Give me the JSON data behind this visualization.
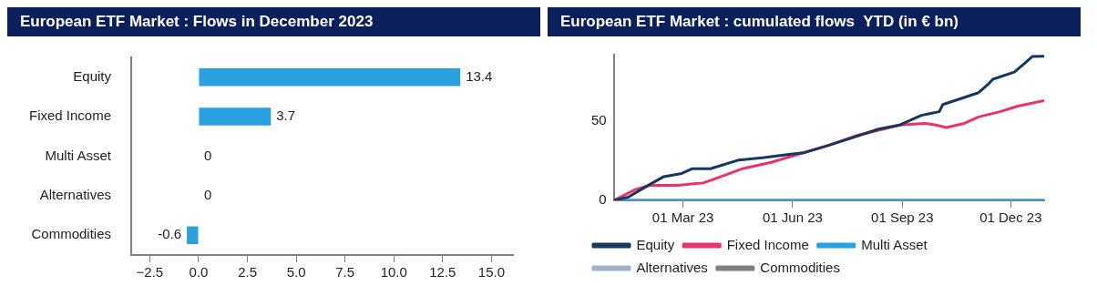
{
  "chart_data": [
    {
      "type": "bar",
      "title": "European ETF Market : Flows in December 2023",
      "orientation": "horizontal",
      "categories": [
        "Equity",
        "Fixed Income",
        "Multi Asset",
        "Alternatives",
        "Commodities"
      ],
      "values": [
        13.4,
        3.7,
        0,
        0,
        -0.6
      ],
      "color": "#2aa0e0",
      "data_labels": true,
      "xlim": [
        -3.45,
        16.1
      ],
      "xticks": [
        {
          "value": -2.5,
          "label": "−2.5"
        },
        {
          "value": 0,
          "label": "0.0"
        },
        {
          "value": 2.5,
          "label": "2.5"
        },
        {
          "value": 5,
          "label": "5.0"
        },
        {
          "value": 7.5,
          "label": "7.5"
        },
        {
          "value": 10,
          "label": "10.0"
        },
        {
          "value": 12.5,
          "label": "12.5"
        },
        {
          "value": 15,
          "label": "15.0"
        }
      ],
      "grid": false,
      "legend": false
    },
    {
      "type": "line",
      "title": "European ETF Market : cumulated flows  YTD (in € bn)",
      "xlim": [
        "2023-01-02",
        "2023-12-29"
      ],
      "xticks": [
        {
          "value": "2023-03-01",
          "label": "01 Mar 23"
        },
        {
          "value": "2023-06-01",
          "label": "01 Jun 23"
        },
        {
          "value": "2023-09-01",
          "label": "01 Sep 23"
        },
        {
          "value": "2023-12-01",
          "label": "01 Dec 23"
        }
      ],
      "ylim": [
        0,
        92
      ],
      "yticks": [
        0,
        50
      ],
      "grid": false,
      "legend": "bottom",
      "marker": "none",
      "line_style": "solid",
      "series": [
        {
          "name": "Equity",
          "color": "#17375e",
          "x": [
            "2023-01-02",
            "2023-01-14",
            "2023-02-01",
            "2023-02-13",
            "2023-02-28",
            "2023-03-09",
            "2023-03-24",
            "2023-04-17",
            "2023-05-08",
            "2023-05-29",
            "2023-06-10",
            "2023-07-01",
            "2023-07-19",
            "2023-08-12",
            "2023-08-30",
            "2023-09-17",
            "2023-10-02",
            "2023-10-05",
            "2023-10-23",
            "2023-11-04",
            "2023-11-13",
            "2023-11-16",
            "2023-12-04",
            "2023-12-13",
            "2023-12-19",
            "2023-12-29"
          ],
          "values": [
            0,
            2,
            10,
            15,
            17,
            20,
            20,
            25.5,
            27,
            29,
            30,
            34.7,
            39,
            45,
            47.6,
            53.7,
            56,
            60.5,
            65,
            68,
            74,
            76.5,
            81,
            86.7,
            90.8,
            91
          ]
        },
        {
          "name": "Fixed Income",
          "color": "#e8336b",
          "x": [
            "2023-01-02",
            "2023-01-20",
            "2023-02-01",
            "2023-02-25",
            "2023-03-18",
            "2023-04-02",
            "2023-04-20",
            "2023-05-14",
            "2023-06-01",
            "2023-07-01",
            "2023-07-25",
            "2023-08-30",
            "2023-09-20",
            "2023-09-29",
            "2023-10-08",
            "2023-10-23",
            "2023-11-04",
            "2023-11-22",
            "2023-12-07",
            "2023-12-29"
          ],
          "values": [
            0,
            6.8,
            9.5,
            9.5,
            11,
            15,
            20,
            24,
            28,
            34.7,
            41,
            47.6,
            48.6,
            47.6,
            46,
            48.6,
            52.7,
            56,
            59.5,
            63
          ]
        },
        {
          "name": "Multi Asset",
          "color": "#2ba0e0",
          "x": [
            "2023-01-02",
            "2023-12-29"
          ],
          "values": [
            0,
            0
          ]
        },
        {
          "name": "Alternatives",
          "color": "#9fb4cc"
        },
        {
          "name": "Commodities",
          "color": "#7f7f7f",
          "x": [
            "2023-01-02",
            "2023-12-29"
          ],
          "values": [
            0,
            0
          ]
        }
      ]
    }
  ]
}
